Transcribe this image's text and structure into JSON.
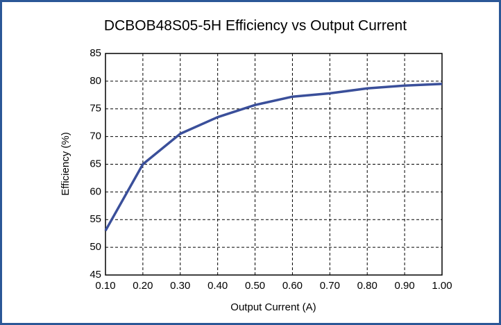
{
  "chart_data": {
    "type": "line",
    "title": "DCBOB48S05-5H Efficiency vs Output Current",
    "xlabel": "Output Current (A)",
    "ylabel": "Efficiency (%)",
    "x": [
      0.1,
      0.2,
      0.3,
      0.4,
      0.5,
      0.6,
      0.7,
      0.8,
      0.9,
      1.0
    ],
    "series": [
      {
        "color": "#3a4f9a",
        "values": [
          53,
          65,
          70.5,
          73.5,
          75.7,
          77.2,
          77.8,
          78.7,
          79.2,
          79.5
        ]
      }
    ],
    "xlim": [
      0.1,
      1.0
    ],
    "xticks": [
      {
        "value": 0.1,
        "label": "0.10"
      },
      {
        "value": 0.2,
        "label": "0.20"
      },
      {
        "value": 0.3,
        "label": "0.30"
      },
      {
        "value": 0.4,
        "label": "0.40"
      },
      {
        "value": 0.5,
        "label": "0.50"
      },
      {
        "value": 0.6,
        "label": "0.60"
      },
      {
        "value": 0.7,
        "label": "0.70"
      },
      {
        "value": 0.8,
        "label": "0.80"
      },
      {
        "value": 0.9,
        "label": "0.90"
      },
      {
        "value": 1.0,
        "label": "1.00"
      }
    ],
    "ylim": [
      45,
      85
    ],
    "yticks": [
      45,
      50,
      55,
      60,
      65,
      70,
      75,
      80,
      85
    ],
    "grid": true
  }
}
